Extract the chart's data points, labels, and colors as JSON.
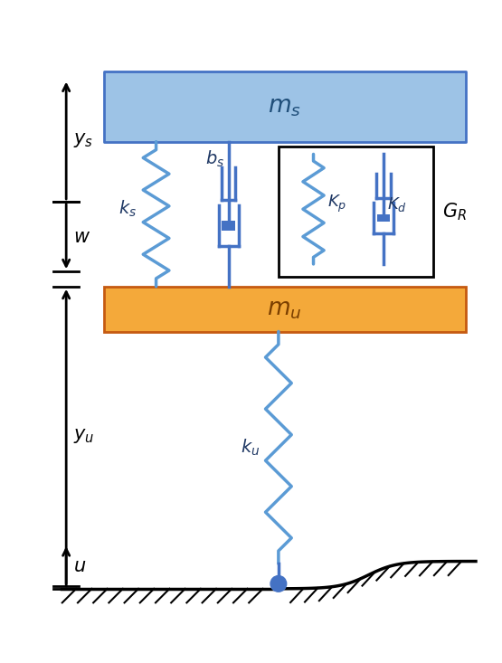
{
  "bg_color": "#ffffff",
  "blue_line": "#4472C4",
  "blue_box_fill": "#9DC3E6",
  "blue_box_edge": "#4472C4",
  "orange_box_fill": "#F4A93A",
  "orange_box_edge": "#C55A11",
  "spring_color": "#5B9BD5",
  "line_width": 2.5,
  "lw_thin": 1.8
}
